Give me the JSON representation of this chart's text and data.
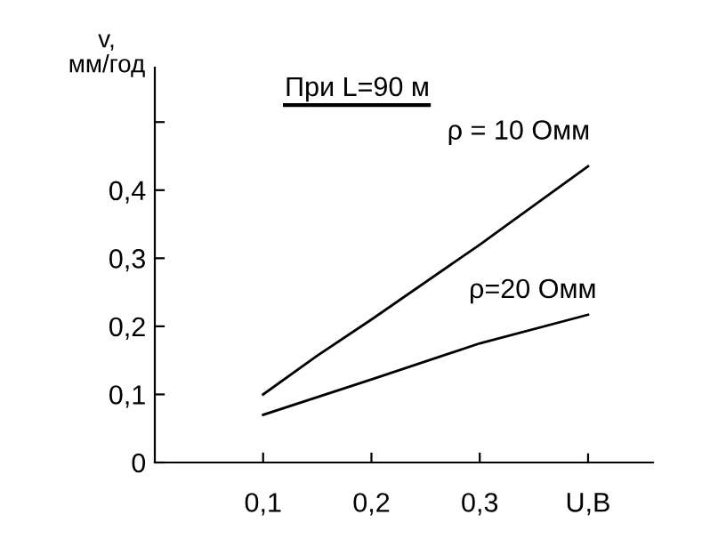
{
  "chart_data": {
    "type": "line",
    "title": "При L=90 м",
    "xlabel": "U,B",
    "ylabel": "v,\nмм/год",
    "xlim": [
      0,
      0.46
    ],
    "ylim": [
      0,
      0.58
    ],
    "xticks": [
      {
        "value": 0.1,
        "label": "0,1"
      },
      {
        "value": 0.2,
        "label": "0,2"
      },
      {
        "value": 0.3,
        "label": "0,3"
      }
    ],
    "yticks": [
      0,
      {
        "value": 0.1,
        "label": "0,1"
      },
      {
        "value": 0.2,
        "label": "0,2"
      },
      {
        "value": 0.3,
        "label": "0,3"
      },
      {
        "value": 0.4,
        "label": "0,4"
      },
      {
        "value": 0.5,
        "label": null
      }
    ],
    "grid": false,
    "legend": false,
    "marker": "none",
    "line_style": "solid",
    "series": [
      {
        "name": "ρ = 10 Омм",
        "color": "#000000",
        "x": [
          0.1,
          0.15,
          0.2,
          0.3,
          0.4
        ],
        "values": [
          0.1,
          0.157,
          0.21,
          0.32,
          0.435
        ]
      },
      {
        "name": "ρ=20 Омм",
        "color": "#000000",
        "x": [
          0.1,
          0.2,
          0.3,
          0.4
        ],
        "values": [
          0.07,
          0.122,
          0.175,
          0.217
        ]
      }
    ]
  }
}
